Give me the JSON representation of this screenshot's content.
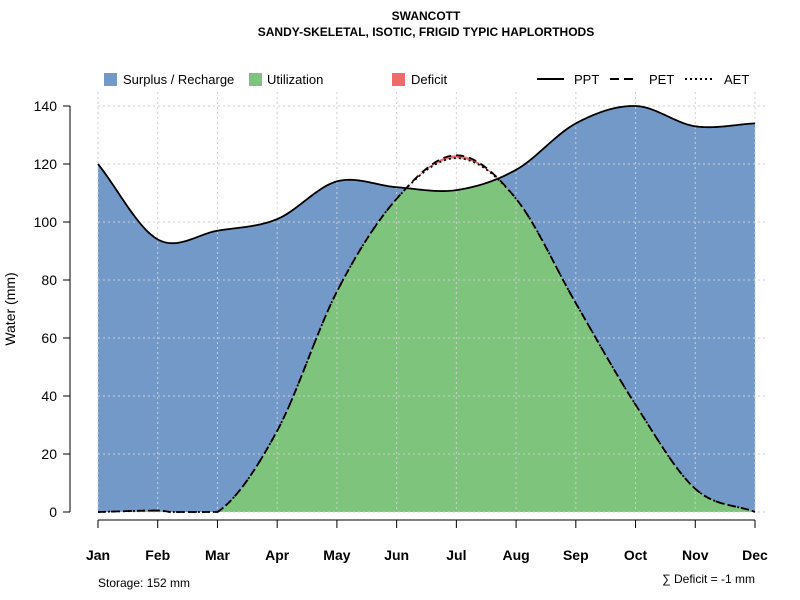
{
  "chart_data": {
    "type": "area",
    "title": "SWANCOTT",
    "subtitle": "SANDY-SKELETAL, ISOTIC, FRIGID TYPIC HAPLORTHODS",
    "xlabel": "",
    "ylabel": "Water (mm)",
    "ylim": [
      0,
      140
    ],
    "yticks": [
      0,
      20,
      40,
      60,
      80,
      100,
      120,
      140
    ],
    "grid": true,
    "legend_position": "top",
    "categories": [
      "Jan",
      "Feb",
      "Mar",
      "Apr",
      "May",
      "Jun",
      "Jul",
      "Aug",
      "Sep",
      "Oct",
      "Nov",
      "Dec"
    ],
    "series": [
      {
        "name": "PPT",
        "style": "solid",
        "values": [
          120,
          94,
          97,
          101,
          114,
          112,
          111,
          118,
          134,
          140,
          133,
          134
        ]
      },
      {
        "name": "PET",
        "style": "dashed",
        "values": [
          0,
          0.5,
          0,
          28,
          76,
          108,
          123,
          108,
          72,
          37,
          8,
          0
        ]
      },
      {
        "name": "AET",
        "style": "dotted",
        "values": [
          0,
          0.5,
          0,
          28,
          76,
          108,
          122,
          108,
          72,
          37,
          8,
          0
        ]
      }
    ],
    "fills": [
      {
        "name": "Surplus / Recharge",
        "color": "#7399C8"
      },
      {
        "name": "Utilization",
        "color": "#7FC47C"
      },
      {
        "name": "Deficit",
        "color": "#EE6B6B"
      }
    ],
    "line_legend": [
      "PPT",
      "PET",
      "AET"
    ],
    "annotations": {
      "storage": "Storage: 152 mm",
      "deficit": "∑ Deficit = -1 mm"
    }
  }
}
